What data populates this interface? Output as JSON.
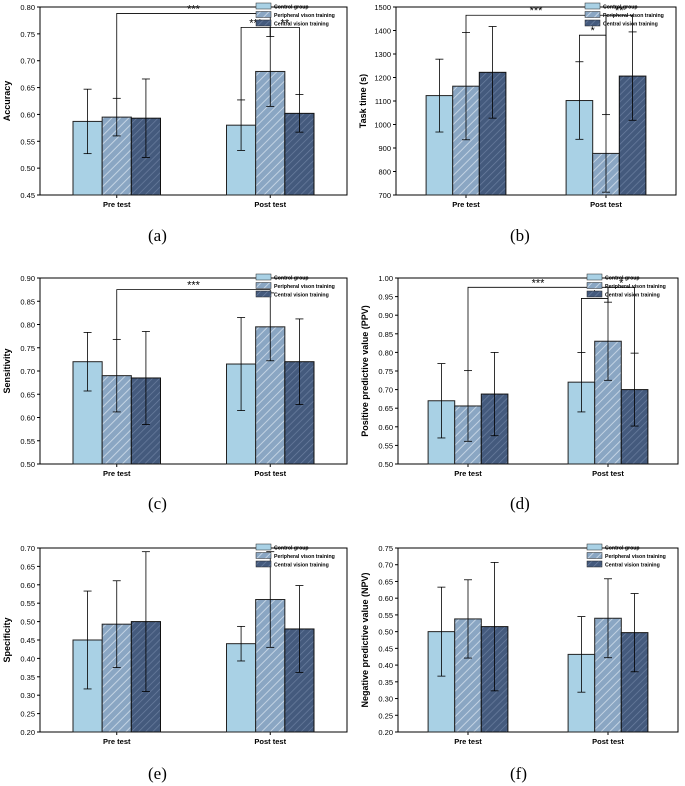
{
  "colors": {
    "control": "#a9d1e5",
    "peripheral": "#8aa6c3",
    "central": "#445a7d",
    "axis": "#000000"
  },
  "legend": [
    "Control group",
    "Peripheral vison training",
    "Central vision training"
  ],
  "chart_data": [
    {
      "type": "bar",
      "label": "(a)",
      "ylabel": "Accuracy",
      "categories": [
        "Pre test",
        "Post test"
      ],
      "ylim": [
        0.45,
        0.8
      ],
      "yticks": [
        "0.45",
        "0.50",
        "0.55",
        "0.60",
        "0.65",
        "0.70",
        "0.75",
        "0.80"
      ],
      "series": [
        {
          "name": "Control group",
          "values": [
            0.587,
            0.58
          ],
          "errors": [
            0.06,
            0.047
          ]
        },
        {
          "name": "Peripheral vison training",
          "values": [
            0.595,
            0.68
          ],
          "errors": [
            0.035,
            0.065
          ]
        },
        {
          "name": "Central vision training",
          "values": [
            0.593,
            0.602
          ],
          "errors": [
            0.073,
            0.035
          ]
        }
      ],
      "sig": [
        {
          "from": [
            0,
            1
          ],
          "to": [
            1,
            1
          ],
          "y": 0.788,
          "text": "***"
        },
        {
          "from": [
            1,
            0
          ],
          "to": [
            1,
            1
          ],
          "y": 0.762,
          "text": "***"
        },
        {
          "from": [
            1,
            1
          ],
          "to": [
            1,
            2
          ],
          "y": 0.762,
          "text": "**"
        }
      ]
    },
    {
      "type": "bar",
      "label": "(b)",
      "ylabel": "Task time (s)",
      "categories": [
        "Pre test",
        "Post test"
      ],
      "ylim": [
        700,
        1500
      ],
      "yticks": [
        "700",
        "800",
        "900",
        "1000",
        "1100",
        "1200",
        "1300",
        "1400",
        "1500"
      ],
      "series": [
        {
          "name": "Control group",
          "values": [
            1123,
            1102
          ],
          "errors": [
            155,
            165
          ]
        },
        {
          "name": "Peripheral vison training",
          "values": [
            1163,
            877
          ],
          "errors": [
            228,
            165
          ]
        },
        {
          "name": "Central vision training",
          "values": [
            1222,
            1206
          ],
          "errors": [
            195,
            188
          ]
        }
      ],
      "sig": [
        {
          "from": [
            0,
            1
          ],
          "to": [
            1,
            1
          ],
          "y": 1465,
          "text": "***"
        },
        {
          "from": [
            1,
            0
          ],
          "to": [
            1,
            1
          ],
          "y": 1380,
          "text": "*"
        },
        {
          "from": [
            1,
            1
          ],
          "to": [
            1,
            2
          ],
          "y": 1465,
          "text": "**"
        }
      ]
    },
    {
      "type": "bar",
      "label": "(c)",
      "ylabel": "Sensitivity",
      "categories": [
        "Pre test",
        "Post test"
      ],
      "ylim": [
        0.5,
        0.9
      ],
      "yticks": [
        "0.50",
        "0.55",
        "0.60",
        "0.65",
        "0.70",
        "0.75",
        "0.80",
        "0.85",
        "0.90"
      ],
      "series": [
        {
          "name": "Control group",
          "values": [
            0.72,
            0.715
          ],
          "errors": [
            0.063,
            0.1
          ]
        },
        {
          "name": "Peripheral vison training",
          "values": [
            0.69,
            0.795
          ],
          "errors": [
            0.078,
            0.073
          ]
        },
        {
          "name": "Central vision training",
          "values": [
            0.685,
            0.72
          ],
          "errors": [
            0.1,
            0.092
          ]
        }
      ],
      "sig": [
        {
          "from": [
            0,
            1
          ],
          "to": [
            1,
            1
          ],
          "y": 0.875,
          "text": "***"
        }
      ]
    },
    {
      "type": "bar",
      "label": "(d)",
      "ylabel": "Positive predictive value (PPV)",
      "categories": [
        "Pre test",
        "Post test"
      ],
      "ylim": [
        0.5,
        1.0
      ],
      "yticks": [
        "0.50",
        "0.55",
        "0.60",
        "0.65",
        "0.70",
        "0.75",
        "0.80",
        "0.85",
        "0.90",
        "0.95",
        "1.00"
      ],
      "series": [
        {
          "name": "Control group",
          "values": [
            0.67,
            0.72
          ],
          "errors": [
            0.1,
            0.08
          ]
        },
        {
          "name": "Peripheral vison training",
          "values": [
            0.656,
            0.83
          ],
          "errors": [
            0.095,
            0.105
          ]
        },
        {
          "name": "Central vision training",
          "values": [
            0.688,
            0.7
          ],
          "errors": [
            0.112,
            0.098
          ]
        }
      ],
      "sig": [
        {
          "from": [
            0,
            1
          ],
          "to": [
            1,
            1
          ],
          "y": 0.975,
          "text": "***"
        },
        {
          "from": [
            1,
            0
          ],
          "to": [
            1,
            1
          ],
          "y": 0.945,
          "text": "*"
        },
        {
          "from": [
            1,
            1
          ],
          "to": [
            1,
            2
          ],
          "y": 0.975,
          "text": "*"
        }
      ]
    },
    {
      "type": "bar",
      "label": "(e)",
      "ylabel": "Specificity",
      "categories": [
        "Pre test",
        "Post test"
      ],
      "ylim": [
        0.2,
        0.7
      ],
      "yticks": [
        "0.20",
        "0.25",
        "0.30",
        "0.35",
        "0.40",
        "0.45",
        "0.50",
        "0.55",
        "0.60",
        "0.65",
        "0.70"
      ],
      "series": [
        {
          "name": "Control group",
          "values": [
            0.45,
            0.44
          ],
          "errors": [
            0.133,
            0.047
          ]
        },
        {
          "name": "Peripheral vison training",
          "values": [
            0.493,
            0.56
          ],
          "errors": [
            0.118,
            0.13
          ]
        },
        {
          "name": "Central vision training",
          "values": [
            0.5,
            0.48
          ],
          "errors": [
            0.19,
            0.118
          ]
        }
      ],
      "sig": []
    },
    {
      "type": "bar",
      "label": "(f)",
      "ylabel": "Negative predictive value (NPV)",
      "categories": [
        "Pre test",
        "Post test"
      ],
      "ylim": [
        0.2,
        0.75
      ],
      "yticks": [
        "0.20",
        "0.25",
        "0.30",
        "0.35",
        "0.40",
        "0.45",
        "0.50",
        "0.55",
        "0.60",
        "0.65",
        "0.70",
        "0.75"
      ],
      "series": [
        {
          "name": "Control group",
          "values": [
            0.5,
            0.432
          ],
          "errors": [
            0.133,
            0.113
          ]
        },
        {
          "name": "Peripheral vison training",
          "values": [
            0.538,
            0.54
          ],
          "errors": [
            0.117,
            0.118
          ]
        },
        {
          "name": "Central vision training",
          "values": [
            0.515,
            0.497
          ],
          "errors": [
            0.192,
            0.117
          ]
        }
      ],
      "sig": []
    }
  ]
}
